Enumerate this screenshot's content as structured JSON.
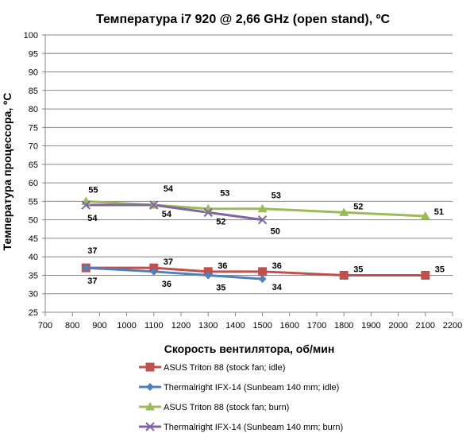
{
  "chart_data": {
    "type": "line",
    "title": "Температура i7 920 @ 2,66 GHz (open stand), ºC",
    "xlabel": "Скорость вентилятора, об/мин",
    "ylabel": "Температура процессора, ºC",
    "xlim": [
      700,
      2200
    ],
    "ylim": [
      25,
      100
    ],
    "xticks": [
      700,
      800,
      900,
      1000,
      1100,
      1200,
      1300,
      1400,
      1500,
      1600,
      1700,
      1800,
      1900,
      2000,
      2100,
      2200
    ],
    "yticks": [
      25,
      30,
      35,
      40,
      45,
      50,
      55,
      60,
      65,
      70,
      75,
      80,
      85,
      90,
      95,
      100
    ],
    "grid": "horizontal",
    "legend": "bottom",
    "series": [
      {
        "name": "ASUS Triton 88 (stock fan; idle)",
        "color": "#c0504d",
        "marker": "square",
        "x": [
          850,
          1100,
          1300,
          1500,
          1800,
          2100
        ],
        "y": [
          37,
          37,
          36,
          36,
          35,
          35
        ],
        "labels": [
          "37",
          "37",
          "36",
          "36",
          "35",
          "35"
        ]
      },
      {
        "name": "Thermalright IFX-14 (Sunbeam 140 mm; idle)",
        "color": "#4f81bd",
        "marker": "diamond",
        "x": [
          850,
          1100,
          1300,
          1500
        ],
        "y": [
          37,
          36,
          35,
          34
        ],
        "labels": [
          "37",
          "36",
          "35",
          "34"
        ]
      },
      {
        "name": "ASUS Triton 88 (stock fan; burn)",
        "color": "#9bbb59",
        "marker": "triangle",
        "x": [
          850,
          1100,
          1300,
          1500,
          1800,
          2100
        ],
        "y": [
          55,
          54,
          53,
          53,
          52,
          51
        ],
        "labels": [
          "55",
          "54",
          "53",
          "53",
          "52",
          "51"
        ]
      },
      {
        "name": "Thermalright IFX-14 (Sunbeam 140 mm; burn)",
        "color": "#8064a2",
        "marker": "x",
        "x": [
          850,
          1100,
          1300,
          1500
        ],
        "y": [
          54,
          54,
          52,
          50
        ],
        "labels": [
          "54",
          "54",
          "52",
          "50"
        ]
      }
    ]
  }
}
